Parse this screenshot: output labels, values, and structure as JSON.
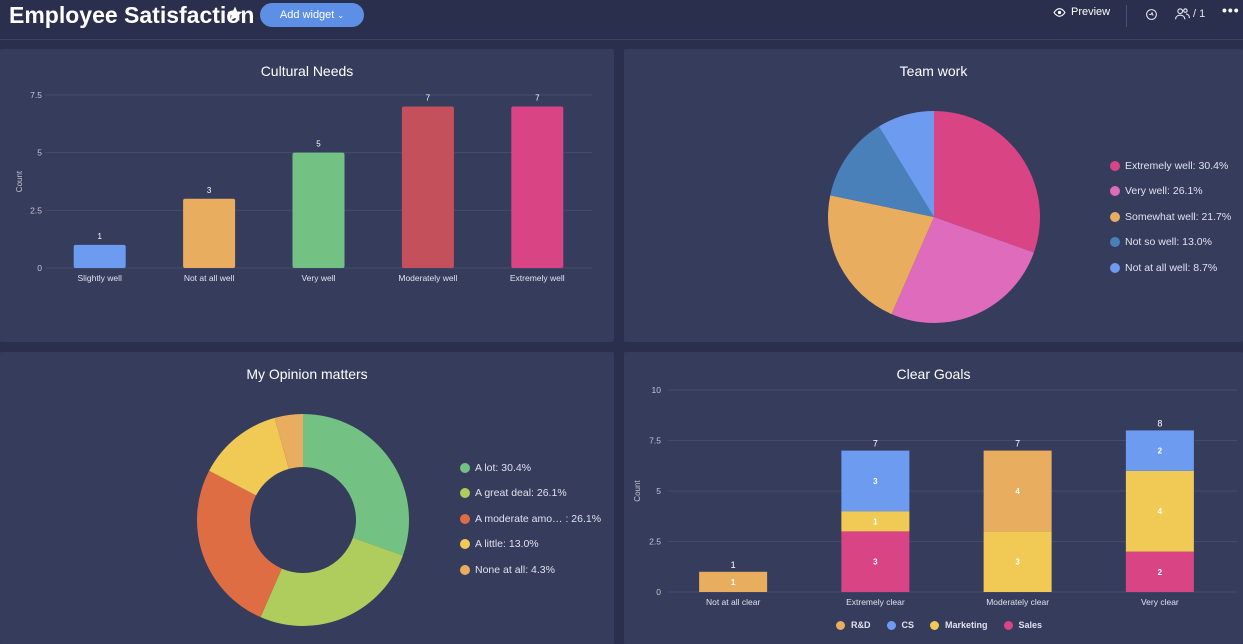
{
  "header": {
    "title": "Employee Satisfaction",
    "add_widget_label": "Add widget",
    "preview_label": "Preview",
    "users_count": "/ 1"
  },
  "widgets": {
    "cultural": {
      "title": "Cultural Needs"
    },
    "teamwork": {
      "title": "Team work"
    },
    "opinion": {
      "title": "My Opinion matters"
    },
    "goals": {
      "title": "Clear Goals"
    }
  },
  "chart_data": [
    {
      "id": "cultural",
      "type": "bar",
      "title": "Cultural Needs",
      "ylabel": "Count",
      "ylim": [
        0,
        7.5
      ],
      "yticks": [
        "7.5",
        "5",
        "2.5",
        "0"
      ],
      "categories": [
        "Slightly well",
        "Not at all well",
        "Very well",
        "Moderately well",
        "Extremely well"
      ],
      "values": [
        1,
        3,
        5,
        7,
        7
      ],
      "colors": [
        "#6c9bf0",
        "#e9ad60",
        "#74c283",
        "#c4505b",
        "#d84484"
      ],
      "grid": true
    },
    {
      "id": "teamwork",
      "type": "pie",
      "title": "Team work",
      "legend": "right",
      "slices": [
        {
          "label": "Extremely well: 30.4%",
          "value": 30.4,
          "color": "#d84484"
        },
        {
          "label": "Very well: 26.1%",
          "value": 26.1,
          "color": "#de6bbb"
        },
        {
          "label": "Somewhat well: 21.7%",
          "value": 21.7,
          "color": "#e9ad60"
        },
        {
          "label": "Not so well: 13.0%",
          "value": 13.0,
          "color": "#4a80ba"
        },
        {
          "label": "Not at all well: 8.7%",
          "value": 8.7,
          "color": "#6c9bf0"
        }
      ]
    },
    {
      "id": "opinion",
      "type": "pie",
      "subtype": "donut",
      "title": "My Opinion matters",
      "legend": "right",
      "slices": [
        {
          "label": "A lot: 30.4%",
          "value": 30.4,
          "color": "#74c283"
        },
        {
          "label": "A great deal: 26.1%",
          "value": 26.1,
          "color": "#afcd5c"
        },
        {
          "label": "A moderate amo…  : 26.1%",
          "value": 26.1,
          "color": "#df6d44"
        },
        {
          "label": "A little: 13.0%",
          "value": 13.0,
          "color": "#f0ca55"
        },
        {
          "label": "None at all: 4.3%",
          "value": 4.3,
          "color": "#e9ad60"
        }
      ]
    },
    {
      "id": "goals",
      "type": "bar",
      "subtype": "stacked",
      "title": "Clear Goals",
      "ylabel": "Count",
      "ylim": [
        0,
        10
      ],
      "yticks": [
        "10",
        "7.5",
        "5",
        "2.5",
        "0"
      ],
      "categories": [
        "Not at all clear",
        "Extremely clear",
        "Moderately clear",
        "Very clear"
      ],
      "totals": [
        1,
        7,
        7,
        8
      ],
      "legend": "bottom",
      "series": [
        {
          "name": "Sales",
          "color": "#d84484",
          "values": [
            0,
            3,
            0,
            2
          ]
        },
        {
          "name": "Marketing",
          "color": "#f0ca55",
          "values": [
            0,
            1,
            3,
            4
          ]
        },
        {
          "name": "R&D",
          "color": "#e9ad60",
          "values": [
            1,
            0,
            4,
            0
          ]
        },
        {
          "name": "CS",
          "color": "#6c9bf0",
          "values": [
            0,
            3,
            0,
            2
          ]
        }
      ],
      "legend_order": [
        "R&D",
        "CS",
        "Marketing",
        "Sales"
      ],
      "grid": true
    }
  ]
}
